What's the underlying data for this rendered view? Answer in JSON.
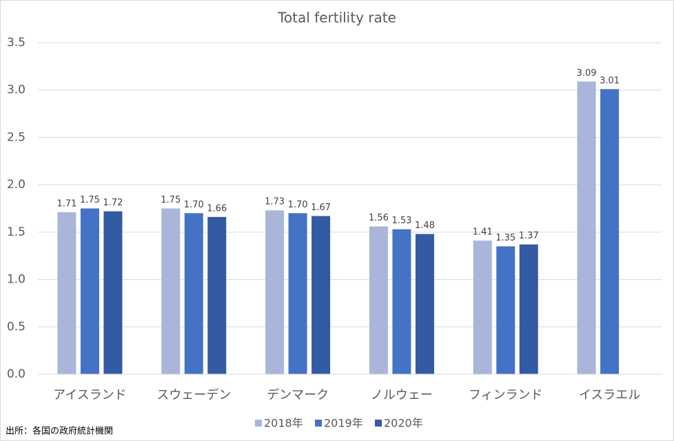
{
  "chart_data": {
    "type": "bar",
    "title": "Total fertility rate",
    "categories": [
      "アイスランド",
      "スウェーデン",
      "デンマーク",
      "ノルウェー",
      "フィンランド",
      "イスラエル"
    ],
    "series": [
      {
        "name": "2018年",
        "color": "#a9b6da",
        "values": [
          1.71,
          1.75,
          1.73,
          1.56,
          1.41,
          3.09
        ],
        "value_labels": [
          "1.71",
          "1.75",
          "1.73",
          "1.56",
          "1.41",
          "3.09"
        ]
      },
      {
        "name": "2019年",
        "color": "#4472c4",
        "values": [
          1.75,
          1.7,
          1.7,
          1.53,
          1.35,
          3.01
        ],
        "value_labels": [
          "1.75",
          "1.70",
          "1.70",
          "1.53",
          "1.35",
          "3.01"
        ]
      },
      {
        "name": "2020年",
        "color": "#335aa3",
        "values": [
          1.72,
          1.66,
          1.67,
          1.48,
          1.37,
          null
        ],
        "value_labels": [
          "1.72",
          "1.66",
          "1.67",
          "1.48",
          "1.37",
          null
        ]
      }
    ],
    "ylim": [
      0,
      3.5
    ],
    "yticks": [
      {
        "value": 0,
        "label": "0.0"
      },
      {
        "value": 0.5,
        "label": "0.5"
      },
      {
        "value": 1,
        "label": "1.0"
      },
      {
        "value": 1.5,
        "label": "1.5"
      },
      {
        "value": 2,
        "label": "2.0"
      },
      {
        "value": 2.5,
        "label": "2.5"
      },
      {
        "value": 3,
        "label": "3.0"
      },
      {
        "value": 3.5,
        "label": "3.5"
      }
    ],
    "grid": true,
    "legend": "bottom",
    "source": "出所：各国の政府統計機関"
  }
}
